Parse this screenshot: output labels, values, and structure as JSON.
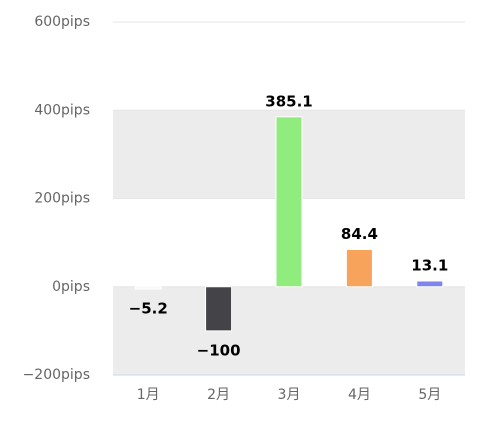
{
  "chart_data": {
    "type": "bar",
    "categories": [
      "1月",
      "2月",
      "3月",
      "4月",
      "5月"
    ],
    "values": [
      -5.2,
      -100,
      385.1,
      84.4,
      13.1
    ],
    "value_labels": [
      "−5.2",
      "−100",
      "385.1",
      "84.4",
      "13.1"
    ],
    "colors": [
      "#f7f7f7",
      "#434348",
      "#90ed7d",
      "#f7a35c",
      "#8085e9"
    ],
    "ylim": [
      -200,
      600
    ],
    "yticks": [
      {
        "value": -200,
        "label": "−200pips"
      },
      {
        "value": 0,
        "label": "0pips"
      },
      {
        "value": 200,
        "label": "200pips"
      },
      {
        "value": 400,
        "label": "400pips"
      },
      {
        "value": 600,
        "label": "600pips"
      }
    ],
    "grid": true,
    "alternate_grid_color": "#ececec"
  }
}
